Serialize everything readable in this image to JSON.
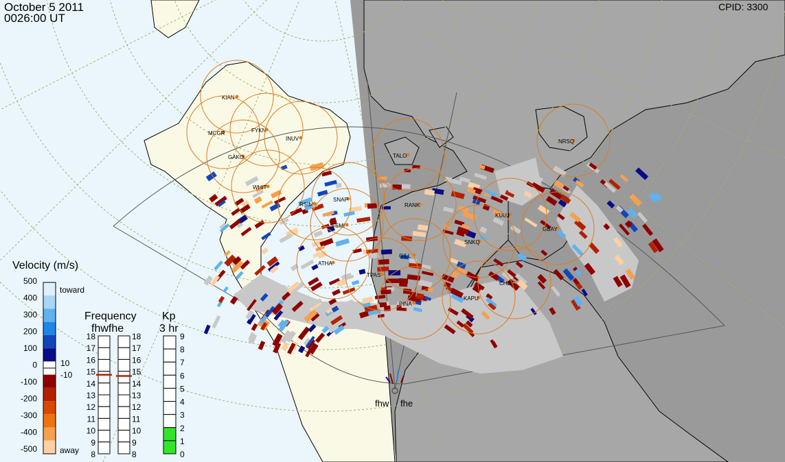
{
  "header": {
    "date": "October  5 2011",
    "time": "0026:00 UT",
    "cpid": "CPID:  3300"
  },
  "colors": {
    "ocean_day": "#eaf6fc",
    "land_day": "#faf9e6",
    "night": "#9a9a9a",
    "coast": "#000000",
    "grid": "#9bb56c",
    "circle": "#e07b1e",
    "station_dot": "#e07b1e",
    "fov": "#555555",
    "gray_scatter": "#c8c8c8",
    "kp_fill": "#33e52a"
  },
  "stations": [
    {
      "name": "KIAN"
    },
    {
      "name": "MCGR"
    },
    {
      "name": "FYKN"
    },
    {
      "name": "INUV"
    },
    {
      "name": "GAKO"
    },
    {
      "name": "WHIT"
    },
    {
      "name": "TALO"
    },
    {
      "name": "NRSQ"
    },
    {
      "name": "RSIM"
    },
    {
      "name": "SNAP"
    },
    {
      "name": "RANK"
    },
    {
      "name": "FSMI"
    },
    {
      "name": "KUUJ"
    },
    {
      "name": "GBAY"
    },
    {
      "name": "SNKQ"
    },
    {
      "name": "GILL"
    },
    {
      "name": "ATHA"
    },
    {
      "name": "TPAS"
    },
    {
      "name": "CHBG"
    },
    {
      "name": "KAPU"
    },
    {
      "name": "PINA"
    }
  ],
  "radars": [
    "fhw",
    "fhe"
  ],
  "velocity_legend": {
    "title": "Velocity (m/s)",
    "toward_label": "toward",
    "away_label": "away",
    "ticks": [
      "500",
      "400",
      "300",
      "200",
      "100",
      "0",
      "-100",
      "-200",
      "-300",
      "-400",
      "-500"
    ],
    "zero_band": [
      "10",
      "-10"
    ],
    "colors": [
      "#dff0fb",
      "#a8d6f5",
      "#5fb2ee",
      "#1d86e6",
      "#1246b8",
      "#090c84",
      "#ffffff",
      "#8e0000",
      "#b32100",
      "#d94800",
      "#ed7210",
      "#f5a050",
      "#fbd0a4"
    ]
  },
  "frequency_legend": {
    "title": "Frequency",
    "radars": "fhwfhe",
    "ticks": [
      "18",
      "17",
      "16",
      "15",
      "14",
      "13",
      "12",
      "11",
      "10",
      "9",
      "8"
    ],
    "fhw_value": 14.7,
    "fhe_value": 14.6
  },
  "kp_legend": {
    "title": "Kp",
    "subtitle": "3 hr",
    "ticks": [
      "9",
      "8",
      "7",
      "6",
      "5",
      "4",
      "3",
      "2",
      "1",
      "0"
    ],
    "value": 2
  }
}
